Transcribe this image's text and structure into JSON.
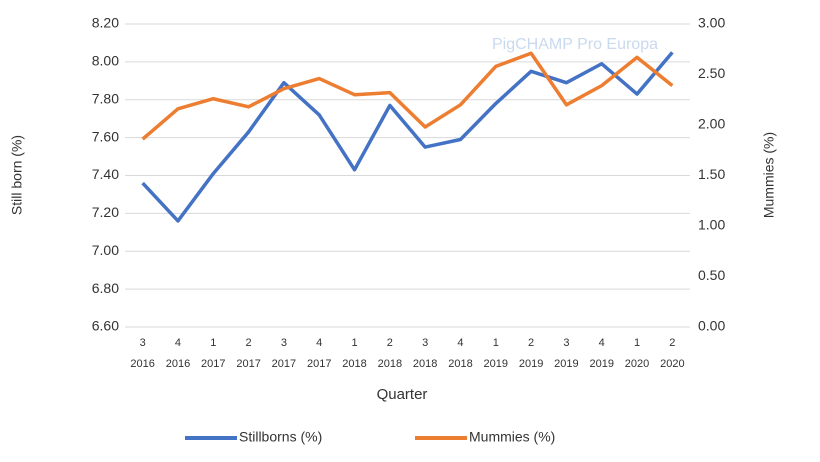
{
  "chart_data": {
    "type": "line",
    "watermark": "PigCHAMP Pro Europa",
    "x_label": "Quarter",
    "y_label": "Still born (%)",
    "y2_label": "Mummies (%)",
    "categories": [
      [
        "3",
        "2016"
      ],
      [
        "4",
        "2016"
      ],
      [
        "1",
        "2017"
      ],
      [
        "2",
        "2017"
      ],
      [
        "3",
        "2017"
      ],
      [
        "4",
        "2017"
      ],
      [
        "1",
        "2018"
      ],
      [
        "2",
        "2018"
      ],
      [
        "3",
        "2018"
      ],
      [
        "4",
        "2018"
      ],
      [
        "1",
        "2019"
      ],
      [
        "2",
        "2019"
      ],
      [
        "3",
        "2019"
      ],
      [
        "4",
        "2019"
      ],
      [
        "1",
        "2020"
      ],
      [
        "2",
        "2020"
      ]
    ],
    "series": [
      {
        "name": "Stillborns (%)",
        "color": "#4472c4",
        "values": [
          7.36,
          7.16,
          7.41,
          7.63,
          7.89,
          7.72,
          7.43,
          7.77,
          7.55,
          7.59,
          7.78,
          7.95,
          7.89,
          7.99,
          7.83,
          8.05
        ]
      },
      {
        "name": "Mummies (%)",
        "color": "#ed7d31",
        "axis": "y2",
        "values": [
          1.86,
          2.16,
          2.26,
          2.18,
          2.36,
          2.46,
          2.3,
          2.32,
          1.98,
          2.2,
          2.58,
          2.71,
          2.2,
          2.39,
          2.67,
          2.39
        ]
      }
    ],
    "ylim": [
      6.6,
      8.2
    ],
    "yticks": [
      {
        "value": 6.6,
        "label": "6.60"
      },
      {
        "value": 6.8,
        "label": "6.80"
      },
      {
        "value": 7.0,
        "label": "7.00"
      },
      {
        "value": 7.2,
        "label": "7.20"
      },
      {
        "value": 7.4,
        "label": "7.40"
      },
      {
        "value": 7.6,
        "label": "7.60"
      },
      {
        "value": 7.8,
        "label": "7.80"
      },
      {
        "value": 8.0,
        "label": "8.00"
      },
      {
        "value": 8.2,
        "label": "8.20"
      }
    ],
    "y2lim": [
      0,
      3
    ],
    "y2ticks": [
      {
        "value": 0,
        "label": "0.00"
      },
      {
        "value": 0.5,
        "label": "0.50"
      },
      {
        "value": 1,
        "label": "1.00"
      },
      {
        "value": 1.5,
        "label": "1.50"
      },
      {
        "value": 2,
        "label": "2.00"
      },
      {
        "value": 2.5,
        "label": "2.50"
      },
      {
        "value": 3,
        "label": "3.00"
      }
    ],
    "grid": true,
    "legend": "bottom"
  }
}
